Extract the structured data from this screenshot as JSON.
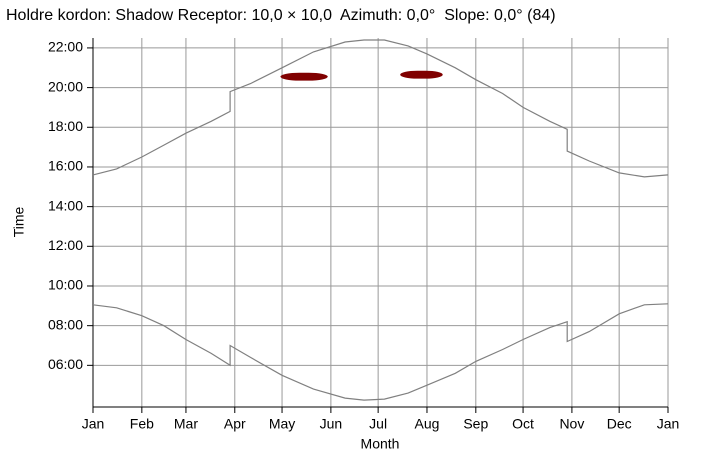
{
  "chart_data": {
    "type": "line",
    "title": "Holdre kordon: Shadow Receptor: 10,0 × 10,0  Azimuth: 0,0°  Slope: 0,0° (84)",
    "x_label": "Month",
    "y_label": "Time",
    "xlim": [
      0,
      365
    ],
    "xticks": [
      {
        "value": 0,
        "label": "Jan"
      },
      {
        "value": 31,
        "label": "Feb"
      },
      {
        "value": 59,
        "label": "Mar"
      },
      {
        "value": 90,
        "label": "Apr"
      },
      {
        "value": 120,
        "label": "May"
      },
      {
        "value": 151,
        "label": "Jun"
      },
      {
        "value": 181,
        "label": "Jul"
      },
      {
        "value": 212,
        "label": "Aug"
      },
      {
        "value": 243,
        "label": "Sep"
      },
      {
        "value": 273,
        "label": "Oct"
      },
      {
        "value": 304,
        "label": "Nov"
      },
      {
        "value": 334,
        "label": "Dec"
      },
      {
        "value": 365,
        "label": "Jan"
      }
    ],
    "ylim": [
      3.9,
      22.5
    ],
    "yticks": [
      {
        "value": 6,
        "label": "06:00"
      },
      {
        "value": 8,
        "label": "08:00"
      },
      {
        "value": 10,
        "label": "10:00"
      },
      {
        "value": 12,
        "label": "12:00"
      },
      {
        "value": 14,
        "label": "14:00"
      },
      {
        "value": 16,
        "label": "16:00"
      },
      {
        "value": 18,
        "label": "18:00"
      },
      {
        "value": 20,
        "label": "20:00"
      },
      {
        "value": 22,
        "label": "22:00"
      }
    ],
    "grid": true,
    "series": [
      {
        "color": "#808080",
        "x": [
          0,
          15,
          31,
          45,
          59,
          75,
          87,
          87,
          100,
          120,
          140,
          160,
          172,
          185,
          200,
          212,
          230,
          243,
          260,
          273,
          290,
          301,
          301,
          315,
          334,
          350,
          365
        ],
        "values": [
          15.6,
          15.9,
          16.5,
          17.1,
          17.7,
          18.3,
          18.8,
          19.8,
          20.2,
          21.0,
          21.8,
          22.3,
          22.4,
          22.4,
          22.1,
          21.7,
          21.0,
          20.4,
          19.7,
          19.0,
          18.3,
          17.9,
          16.8,
          16.3,
          15.7,
          15.5,
          15.6
        ]
      },
      {
        "color": "#808080",
        "x": [
          0,
          15,
          31,
          45,
          59,
          75,
          87,
          87,
          100,
          120,
          140,
          160,
          172,
          185,
          200,
          212,
          230,
          243,
          260,
          273,
          290,
          301,
          301,
          315,
          334,
          350,
          365
        ],
        "values": [
          9.05,
          8.9,
          8.5,
          8.0,
          7.3,
          6.6,
          6.0,
          7.0,
          6.4,
          5.5,
          4.8,
          4.35,
          4.25,
          4.3,
          4.6,
          5.0,
          5.6,
          6.2,
          6.8,
          7.3,
          7.9,
          8.2,
          7.2,
          7.7,
          8.6,
          9.05,
          9.1
        ]
      }
    ],
    "shadow_color": "#800000",
    "shadow_periods": [
      {
        "start_day": 119,
        "end_day": 149,
        "start_time": 20.35,
        "end_time": 20.75
      },
      {
        "start_day": 195,
        "end_day": 222,
        "start_time": 20.45,
        "end_time": 20.85
      }
    ]
  }
}
